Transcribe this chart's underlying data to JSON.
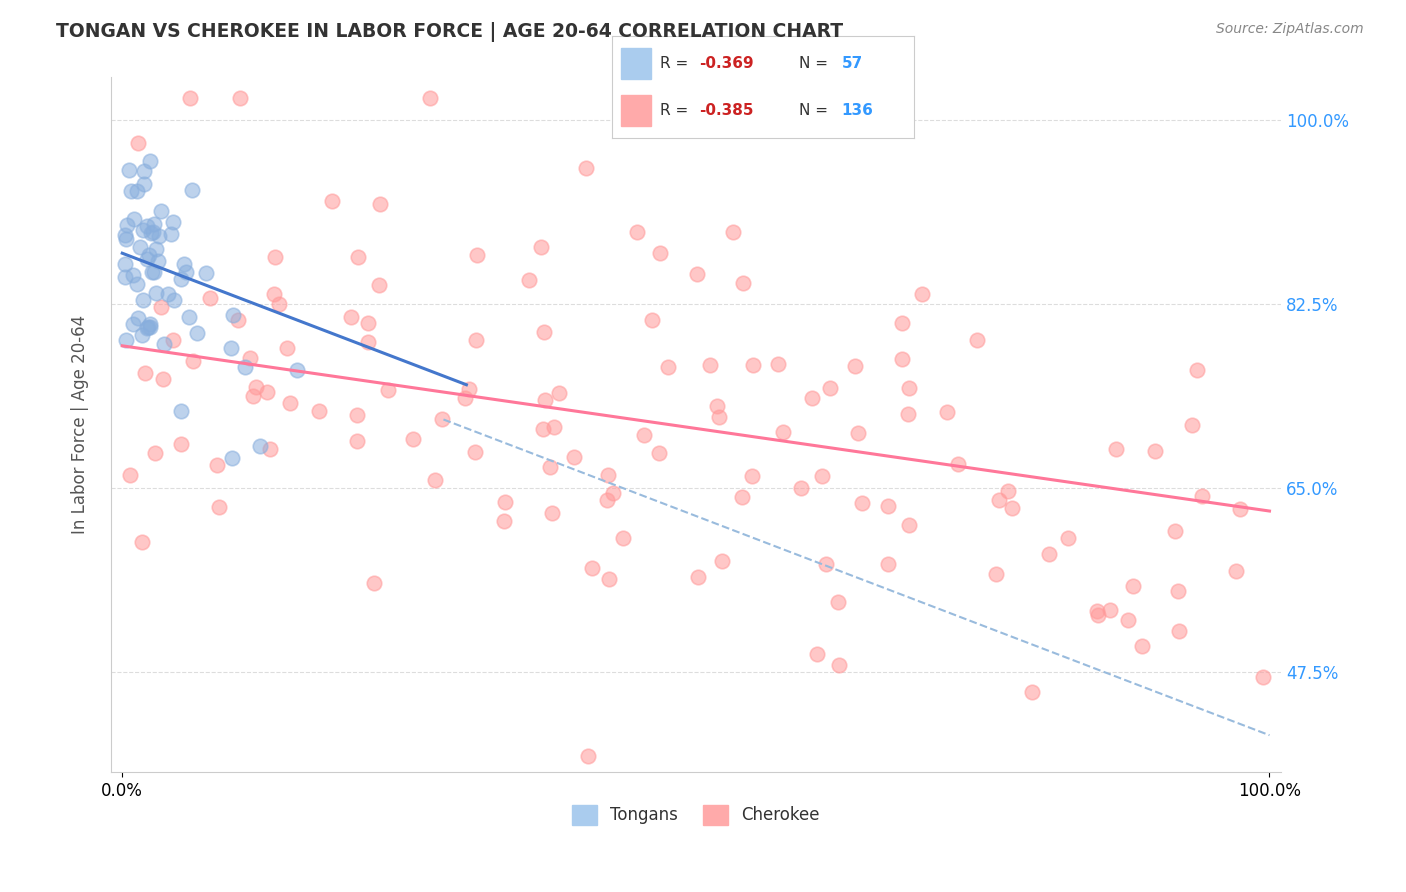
{
  "title": "TONGAN VS CHEROKEE IN LABOR FORCE | AGE 20-64 CORRELATION CHART",
  "source": "Source: ZipAtlas.com",
  "ylabel": "In Labor Force | Age 20-64",
  "xlim": [
    -0.01,
    1.01
  ],
  "ylim": [
    0.38,
    1.04
  ],
  "ytick_vals": [
    0.475,
    0.65,
    0.825,
    1.0
  ],
  "ytick_labels": [
    "47.5%",
    "65.0%",
    "82.5%",
    "100.0%"
  ],
  "xtick_vals": [
    0.0,
    1.0
  ],
  "xtick_labels": [
    "0.0%",
    "100.0%"
  ],
  "tongan_R": -0.369,
  "tongan_N": 57,
  "cherokee_R": -0.385,
  "cherokee_N": 136,
  "tongan_color": "#88AEDD",
  "cherokee_color": "#FF9999",
  "tongan_line_color": "#4477CC",
  "cherokee_line_color": "#FF7799",
  "dashed_line_color": "#99BBDD",
  "background_color": "#FFFFFF",
  "grid_color": "#DDDDDD",
  "legend_R_color": "#CC2222",
  "legend_N_color": "#3399FF",
  "source_color": "#888888",
  "title_color": "#333333",
  "right_tick_color": "#3399FF",
  "tongan_line_x0": 0.0,
  "tongan_line_y0": 0.873,
  "tongan_line_x1": 0.3,
  "tongan_line_y1": 0.748,
  "cherokee_line_x0": 0.0,
  "cherokee_line_y0": 0.785,
  "cherokee_line_x1": 1.0,
  "cherokee_line_y1": 0.628,
  "dashed_line_x0": 0.28,
  "dashed_line_y0": 0.715,
  "dashed_line_x1": 1.0,
  "dashed_line_y1": 0.415
}
